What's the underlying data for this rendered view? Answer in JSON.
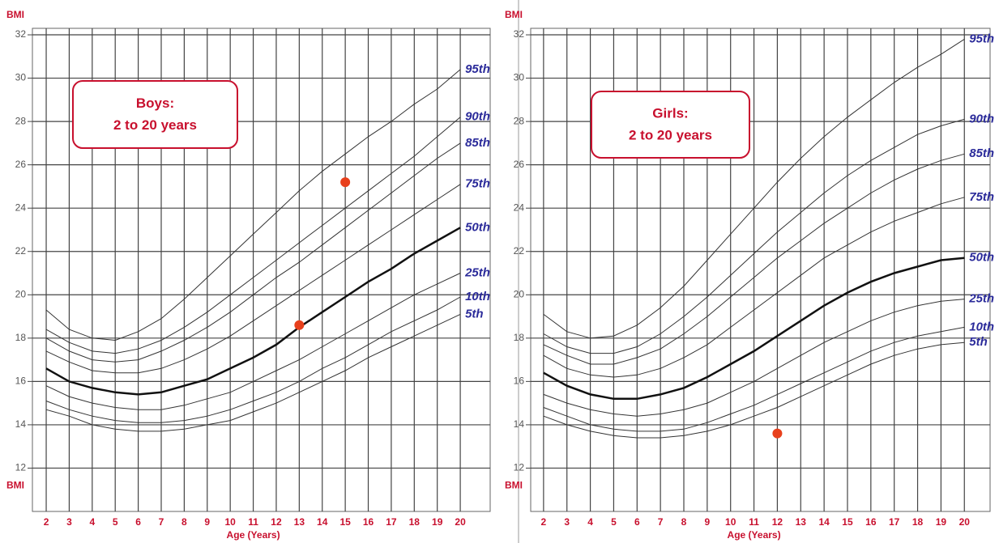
{
  "chart_data": [
    {
      "type": "line",
      "title": "Boys:",
      "subtitle": "2 to 20 years",
      "ylabel": "BMI",
      "xlabel": "Age (Years)",
      "x": [
        2,
        3,
        4,
        5,
        6,
        7,
        8,
        9,
        10,
        11,
        12,
        13,
        14,
        15,
        16,
        17,
        18,
        19,
        20
      ],
      "xlim": [
        1.4,
        21.3
      ],
      "xticks": [
        2,
        3,
        4,
        5,
        6,
        7,
        8,
        9,
        10,
        11,
        12,
        13,
        14,
        15,
        16,
        17,
        18,
        19,
        20
      ],
      "ylim": [
        10,
        32.3
      ],
      "yticks": [
        12,
        14,
        16,
        18,
        20,
        22,
        24,
        26,
        28,
        30,
        32
      ],
      "grid": true,
      "series": [
        {
          "name": "95th",
          "color": "#333333",
          "width": 1,
          "values": [
            19.3,
            18.4,
            18.0,
            17.9,
            18.3,
            18.9,
            19.8,
            20.8,
            21.8,
            22.8,
            23.8,
            24.8,
            25.7,
            26.5,
            27.3,
            28.0,
            28.8,
            29.5,
            30.4
          ]
        },
        {
          "name": "90th",
          "color": "#333333",
          "width": 1,
          "values": [
            18.4,
            17.8,
            17.4,
            17.3,
            17.5,
            17.9,
            18.5,
            19.2,
            20.0,
            20.8,
            21.6,
            22.4,
            23.2,
            24.0,
            24.8,
            25.6,
            26.4,
            27.3,
            28.2
          ]
        },
        {
          "name": "85th",
          "color": "#333333",
          "width": 1,
          "values": [
            18.0,
            17.4,
            17.0,
            16.9,
            17.0,
            17.4,
            17.9,
            18.5,
            19.2,
            20.0,
            20.8,
            21.5,
            22.3,
            23.1,
            23.9,
            24.7,
            25.5,
            26.3,
            27.0
          ]
        },
        {
          "name": "75th",
          "color": "#333333",
          "width": 1,
          "values": [
            17.4,
            16.9,
            16.5,
            16.4,
            16.4,
            16.6,
            17.0,
            17.5,
            18.1,
            18.8,
            19.5,
            20.2,
            20.9,
            21.6,
            22.3,
            23.0,
            23.7,
            24.4,
            25.1
          ]
        },
        {
          "name": "50th",
          "color": "#111111",
          "width": 2.5,
          "values": [
            16.6,
            16.0,
            15.7,
            15.5,
            15.4,
            15.5,
            15.8,
            16.1,
            16.6,
            17.1,
            17.7,
            18.5,
            19.2,
            19.9,
            20.6,
            21.2,
            21.9,
            22.5,
            23.1
          ]
        },
        {
          "name": "25th",
          "color": "#333333",
          "width": 1,
          "values": [
            15.8,
            15.3,
            15.0,
            14.8,
            14.7,
            14.7,
            14.9,
            15.2,
            15.5,
            16.0,
            16.5,
            17.0,
            17.6,
            18.2,
            18.8,
            19.4,
            20.0,
            20.5,
            21.0
          ]
        },
        {
          "name": "10th",
          "color": "#333333",
          "width": 1,
          "values": [
            15.1,
            14.7,
            14.4,
            14.2,
            14.1,
            14.1,
            14.2,
            14.4,
            14.7,
            15.1,
            15.5,
            16.0,
            16.6,
            17.1,
            17.7,
            18.3,
            18.8,
            19.3,
            19.9
          ]
        },
        {
          "name": "5th",
          "color": "#333333",
          "width": 1,
          "values": [
            14.7,
            14.4,
            14.0,
            13.8,
            13.7,
            13.7,
            13.8,
            14.0,
            14.2,
            14.6,
            15.0,
            15.5,
            16.0,
            16.5,
            17.1,
            17.6,
            18.1,
            18.6,
            19.1
          ]
        }
      ],
      "points": {
        "color": "#e8401c",
        "x": [
          15,
          13
        ],
        "y": [
          25.2,
          18.6
        ]
      }
    },
    {
      "type": "line",
      "title": "Girls:",
      "subtitle": "2 to 20 years",
      "ylabel": "BMI",
      "xlabel": "Age (Years)",
      "x": [
        2,
        3,
        4,
        5,
        6,
        7,
        8,
        9,
        10,
        11,
        12,
        13,
        14,
        15,
        16,
        17,
        18,
        19,
        20
      ],
      "xlim": [
        1.45,
        21.1
      ],
      "xticks": [
        2,
        3,
        4,
        5,
        6,
        7,
        8,
        9,
        10,
        11,
        12,
        13,
        14,
        15,
        16,
        17,
        18,
        19,
        20
      ],
      "ylim": [
        10,
        32.3
      ],
      "yticks": [
        12,
        14,
        16,
        18,
        20,
        22,
        24,
        26,
        28,
        30,
        32
      ],
      "grid": true,
      "series": [
        {
          "name": "95th",
          "color": "#333333",
          "width": 1,
          "values": [
            19.1,
            18.3,
            18.0,
            18.1,
            18.6,
            19.4,
            20.4,
            21.6,
            22.8,
            24.0,
            25.2,
            26.3,
            27.3,
            28.2,
            29.0,
            29.8,
            30.5,
            31.1,
            31.8
          ]
        },
        {
          "name": "90th",
          "color": "#333333",
          "width": 1,
          "values": [
            18.2,
            17.6,
            17.3,
            17.3,
            17.6,
            18.2,
            19.0,
            19.9,
            20.9,
            21.9,
            22.9,
            23.8,
            24.7,
            25.5,
            26.2,
            26.8,
            27.4,
            27.8,
            28.1
          ]
        },
        {
          "name": "85th",
          "color": "#333333",
          "width": 1,
          "values": [
            17.7,
            17.2,
            16.8,
            16.8,
            17.1,
            17.5,
            18.2,
            19.0,
            19.9,
            20.8,
            21.7,
            22.5,
            23.3,
            24.0,
            24.7,
            25.3,
            25.8,
            26.2,
            26.5
          ]
        },
        {
          "name": "75th",
          "color": "#333333",
          "width": 1,
          "values": [
            17.2,
            16.6,
            16.3,
            16.2,
            16.3,
            16.6,
            17.1,
            17.7,
            18.5,
            19.3,
            20.1,
            20.9,
            21.7,
            22.3,
            22.9,
            23.4,
            23.8,
            24.2,
            24.5
          ]
        },
        {
          "name": "50th",
          "color": "#111111",
          "width": 2.5,
          "values": [
            16.4,
            15.8,
            15.4,
            15.2,
            15.2,
            15.4,
            15.7,
            16.2,
            16.8,
            17.4,
            18.1,
            18.8,
            19.5,
            20.1,
            20.6,
            21.0,
            21.3,
            21.6,
            21.7
          ]
        },
        {
          "name": "25th",
          "color": "#333333",
          "width": 1,
          "values": [
            15.4,
            15.0,
            14.7,
            14.5,
            14.4,
            14.5,
            14.7,
            15.0,
            15.5,
            16.0,
            16.6,
            17.2,
            17.8,
            18.3,
            18.8,
            19.2,
            19.5,
            19.7,
            19.8
          ]
        },
        {
          "name": "10th",
          "color": "#333333",
          "width": 1,
          "values": [
            14.8,
            14.4,
            14.0,
            13.8,
            13.7,
            13.7,
            13.8,
            14.1,
            14.5,
            14.9,
            15.4,
            15.9,
            16.4,
            16.9,
            17.4,
            17.8,
            18.1,
            18.3,
            18.5
          ]
        },
        {
          "name": "5th",
          "color": "#333333",
          "width": 1,
          "values": [
            14.4,
            14.0,
            13.7,
            13.5,
            13.4,
            13.4,
            13.5,
            13.7,
            14.0,
            14.4,
            14.8,
            15.3,
            15.8,
            16.3,
            16.8,
            17.2,
            17.5,
            17.7,
            17.8
          ]
        }
      ],
      "points": {
        "color": "#e8401c",
        "x": [
          12
        ],
        "y": [
          13.6
        ]
      }
    }
  ]
}
